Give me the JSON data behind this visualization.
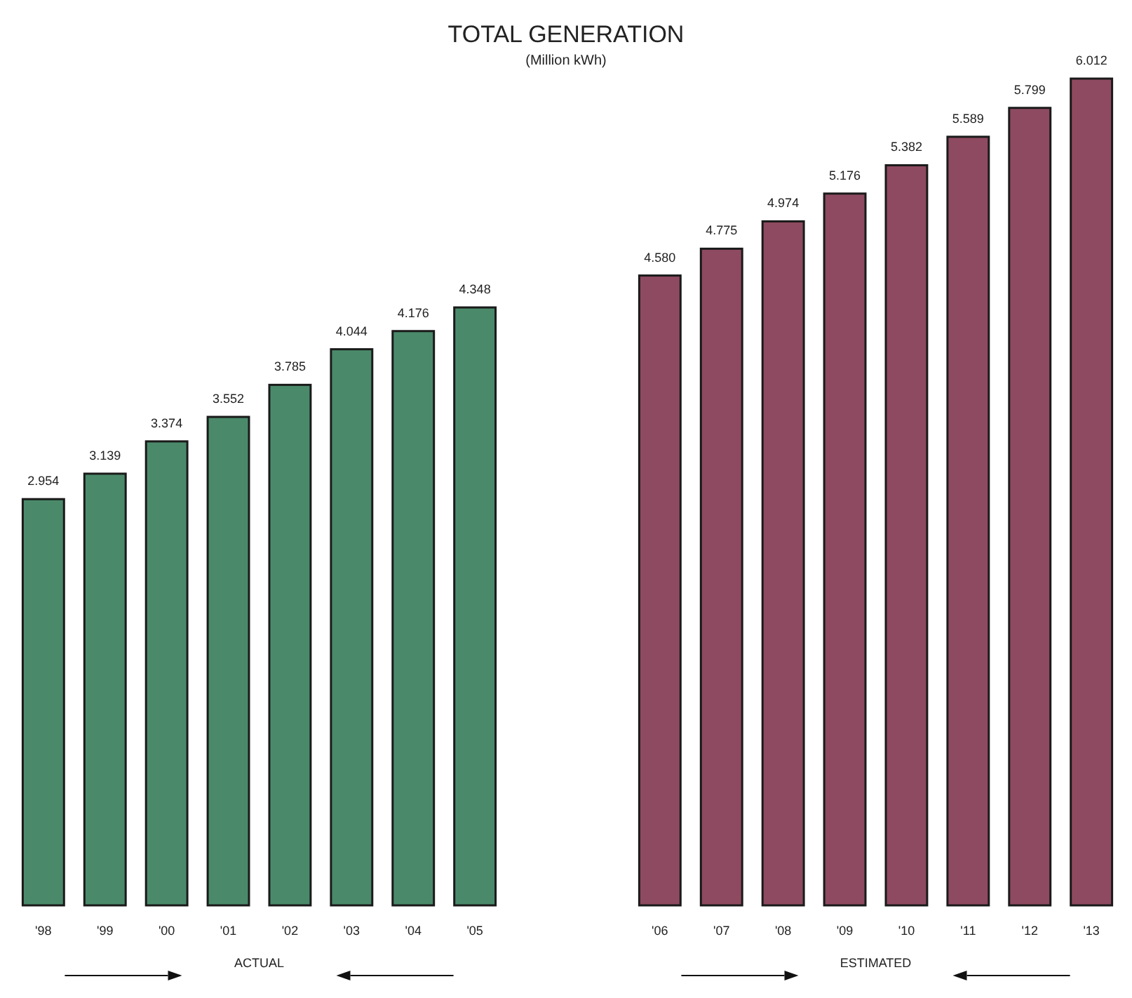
{
  "chart_data": {
    "type": "bar",
    "title": "TOTAL GENERATION",
    "subtitle": "(Million kWh)",
    "categories": [
      "'98",
      "'99",
      "'00",
      "'01",
      "'02",
      "'03",
      "'04",
      "'05",
      null,
      null,
      "'06",
      "'07",
      "'08",
      "'09",
      "'10",
      "'11",
      "'12",
      "'13"
    ],
    "values": [
      2.954,
      3.139,
      3.374,
      3.552,
      3.785,
      4.044,
      4.176,
      4.348,
      null,
      null,
      4.58,
      4.775,
      4.974,
      5.176,
      5.382,
      5.589,
      5.799,
      6.012
    ],
    "colors": [
      "#4a8a6a",
      "#4a8a6a",
      "#4a8a6a",
      "#4a8a6a",
      "#4a8a6a",
      "#4a8a6a",
      "#4a8a6a",
      "#4a8a6a",
      null,
      null,
      "#8e4a60",
      "#8e4a60",
      "#8e4a60",
      "#8e4a60",
      "#8e4a60",
      "#8e4a60",
      "#8e4a60",
      "#8e4a60"
    ],
    "value_labels": [
      "2.954",
      "3.139",
      "3.374",
      "3.552",
      "3.785",
      "4.044",
      "4.176",
      "4.348",
      null,
      null,
      "4.580",
      "4.775",
      "4.974",
      "5.176",
      "5.382",
      "5.589",
      "5.799",
      "6.012"
    ],
    "annotations": [
      "ACTUAL",
      "ESTIMATED"
    ]
  }
}
